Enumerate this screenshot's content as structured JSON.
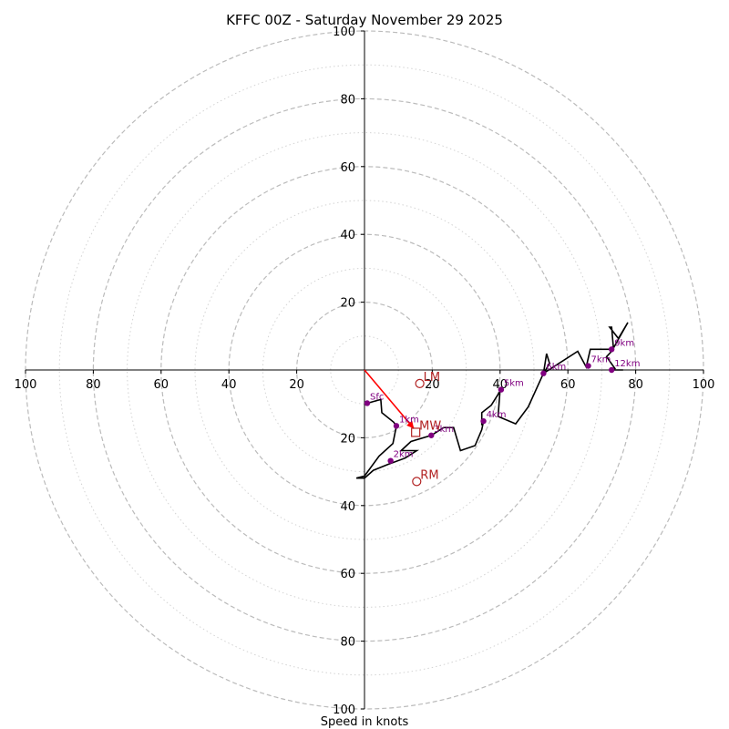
{
  "chart_data": {
    "type": "hodograph",
    "title": "KFFC 00Z - Saturday November 29 2025",
    "xlabel": "Speed in knots",
    "range": [
      -100,
      100
    ],
    "ring_major": [
      20,
      40,
      60,
      80,
      100
    ],
    "ring_minor": [
      10,
      30,
      50,
      70,
      90
    ],
    "x_ticks": [
      {
        "value": -100,
        "label": "100"
      },
      {
        "value": -80,
        "label": "80"
      },
      {
        "value": -60,
        "label": "60"
      },
      {
        "value": -40,
        "label": "40"
      },
      {
        "value": -20,
        "label": "20"
      },
      {
        "value": 20,
        "label": "20"
      },
      {
        "value": 40,
        "label": "40"
      },
      {
        "value": 60,
        "label": "60"
      },
      {
        "value": 80,
        "label": "80"
      },
      {
        "value": 100,
        "label": "100"
      }
    ],
    "y_ticks": [
      {
        "value": 100,
        "label": "100"
      },
      {
        "value": 80,
        "label": "80"
      },
      {
        "value": 60,
        "label": "60"
      },
      {
        "value": 40,
        "label": "40"
      },
      {
        "value": 20,
        "label": "20"
      },
      {
        "value": -20,
        "label": "20"
      },
      {
        "value": -40,
        "label": "40"
      },
      {
        "value": -60,
        "label": "60"
      },
      {
        "value": -80,
        "label": "80"
      },
      {
        "value": -100,
        "label": "100"
      }
    ],
    "trace": [
      [
        0.8,
        -9.8
      ],
      [
        4.8,
        -8.7
      ],
      [
        5.1,
        -12.6
      ],
      [
        8.6,
        -15.4
      ],
      [
        9.4,
        -16.5
      ],
      [
        8.4,
        -21.7
      ],
      [
        4.3,
        -25.4
      ],
      [
        0,
        -31.3
      ],
      [
        -2.4,
        -31.9
      ],
      [
        0,
        -31.9
      ],
      [
        2.6,
        -29.6
      ],
      [
        7.1,
        -27.8
      ],
      [
        12.0,
        -26.0
      ],
      [
        15.4,
        -23.8
      ],
      [
        10.8,
        -23.8
      ],
      [
        13.7,
        -21.1
      ],
      [
        19.7,
        -19.3
      ],
      [
        23.4,
        -17.0
      ],
      [
        26.3,
        -17.0
      ],
      [
        28.3,
        -23.8
      ],
      [
        32.6,
        -22.3
      ],
      [
        34.6,
        -17.6
      ],
      [
        35.1,
        -15.1
      ],
      [
        34.6,
        -16.3
      ],
      [
        34.6,
        -12.6
      ],
      [
        37.4,
        -10.4
      ],
      [
        40.3,
        -5.8
      ],
      [
        40.0,
        -5.8
      ],
      [
        39.4,
        -13.7
      ],
      [
        44.6,
        -15.9
      ],
      [
        48.3,
        -10.9
      ],
      [
        52.8,
        -1.0
      ],
      [
        54.6,
        1.9
      ],
      [
        53.7,
        4.8
      ],
      [
        52.8,
        -1.0
      ],
      [
        62.9,
        5.5
      ],
      [
        65.4,
        0.9
      ],
      [
        66.6,
        6.1
      ],
      [
        72.9,
        6.1
      ],
      [
        72.9,
        6.1
      ],
      [
        73.4,
        7.0
      ],
      [
        72.9,
        12.6
      ],
      [
        72.3,
        12.6
      ],
      [
        74.9,
        9.3
      ],
      [
        77.7,
        14.0
      ],
      [
        72.9,
        5.5
      ],
      [
        71.4,
        3.9
      ],
      [
        73.9,
        0.4
      ],
      [
        73.4,
        0
      ],
      [
        72.9,
        0
      ],
      [
        75.4,
        0
      ],
      [
        76.3,
        0
      ],
      [
        76.3,
        0
      ],
      [
        72.9,
        0
      ]
    ],
    "height_markers": [
      {
        "label": "Sfc",
        "u": 0.8,
        "v": -9.8
      },
      {
        "label": "1km",
        "u": 9.4,
        "v": -16.5
      },
      {
        "label": "2km",
        "u": 7.7,
        "v": -26.8
      },
      {
        "label": "3km",
        "u": 19.7,
        "v": -19.3
      },
      {
        "label": "4km",
        "u": 35.1,
        "v": -15.1
      },
      {
        "label": "5km",
        "u": 40.3,
        "v": -5.8
      },
      {
        "label": "6km",
        "u": 52.8,
        "v": -1.0
      },
      {
        "label": "7km",
        "u": 66.0,
        "v": 1.2
      },
      {
        "label": "9km",
        "u": 72.9,
        "v": 6.1
      },
      {
        "label": "12km",
        "u": 72.9,
        "v": 0
      }
    ],
    "motion_points": [
      {
        "label": "LM",
        "u": 16.3,
        "v": -4.0,
        "marker": "circle"
      },
      {
        "label": "MW",
        "u": 15.1,
        "v": -18.4,
        "marker": "square"
      },
      {
        "label": "RM",
        "u": 15.4,
        "v": -32.9,
        "marker": "circle"
      }
    ],
    "shear_vector": {
      "from": [
        0,
        0
      ],
      "to": [
        14.6,
        -17.3
      ]
    },
    "colors": {
      "ring": "#bbbbbb",
      "trace": "#000000",
      "marker": "#800080",
      "motion": "#b22222",
      "shear": "#ff0000",
      "axis": "#000000"
    }
  }
}
